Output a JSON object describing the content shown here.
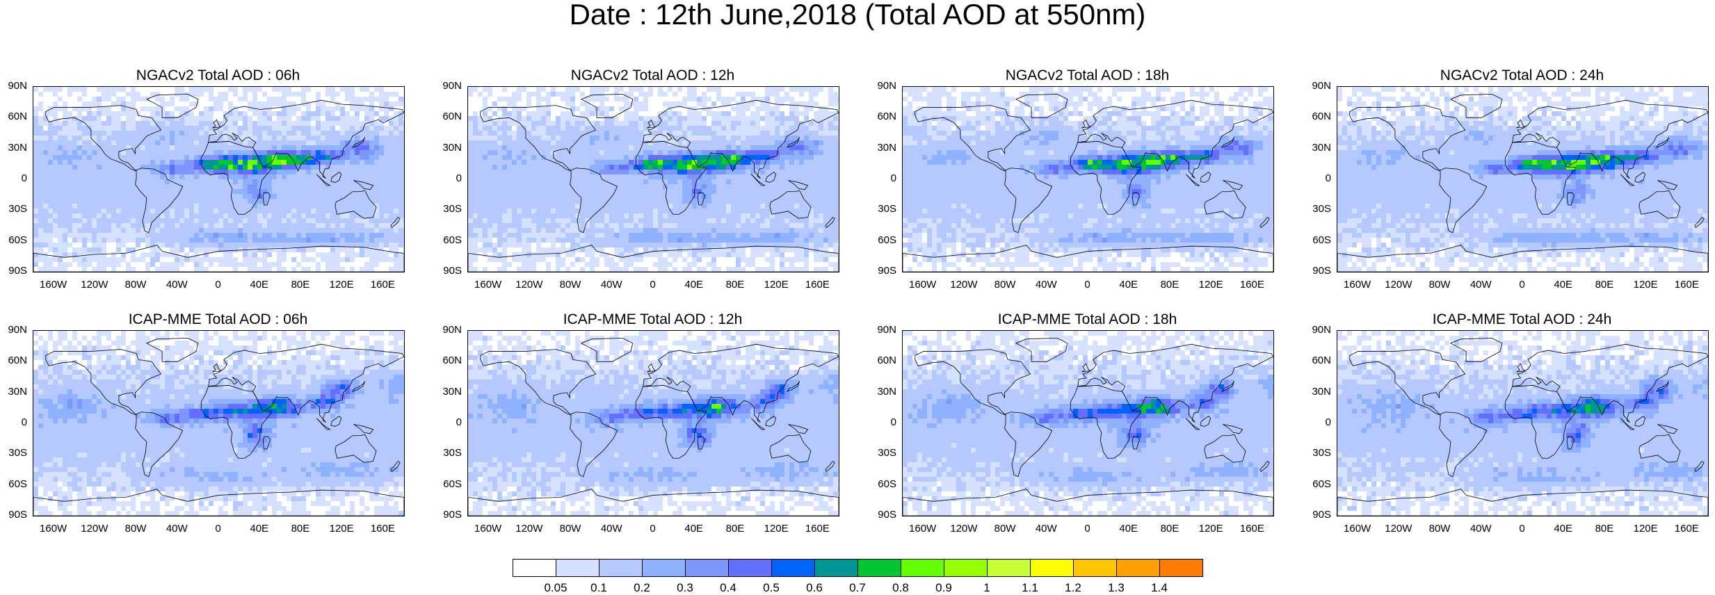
{
  "figure": {
    "title": "Date : 12th June,2018 (Total AOD at 550nm)"
  },
  "axes": {
    "lat_labels": [
      "90N",
      "60N",
      "30N",
      "0",
      "30S",
      "60S",
      "90S"
    ],
    "lon_labels": [
      "160W",
      "120W",
      "80W",
      "40W",
      "0",
      "40E",
      "80E",
      "120E",
      "160E"
    ],
    "lat_values": [
      90,
      60,
      30,
      0,
      -30,
      -60,
      -90
    ],
    "lon_values": [
      -160,
      -120,
      -80,
      -40,
      0,
      40,
      80,
      120,
      160
    ]
  },
  "panels": [
    {
      "title": "NGACv2 Total AOD : 06h",
      "model": "NGACv2",
      "hour": "06h"
    },
    {
      "title": "NGACv2 Total AOD : 12h",
      "model": "NGACv2",
      "hour": "12h"
    },
    {
      "title": "NGACv2 Total AOD : 18h",
      "model": "NGACv2",
      "hour": "18h"
    },
    {
      "title": "NGACv2 Total AOD : 24h",
      "model": "NGACv2",
      "hour": "24h"
    },
    {
      "title": "ICAP-MME Total AOD : 06h",
      "model": "ICAP-MME",
      "hour": "06h"
    },
    {
      "title": "ICAP-MME Total AOD : 12h",
      "model": "ICAP-MME",
      "hour": "12h"
    },
    {
      "title": "ICAP-MME Total AOD : 18h",
      "model": "ICAP-MME",
      "hour": "18h"
    },
    {
      "title": "ICAP-MME Total AOD : 24h",
      "model": "ICAP-MME",
      "hour": "24h"
    }
  ],
  "colorbar": {
    "labels": [
      "0.05",
      "0.1",
      "0.2",
      "0.3",
      "0.4",
      "0.5",
      "0.6",
      "0.7",
      "0.8",
      "0.9",
      "1",
      "1.1",
      "1.2",
      "1.3",
      "1.4"
    ],
    "colors": [
      "#ffffff",
      "#d6e1ff",
      "#b5c9ff",
      "#8eb2ff",
      "#7f96ff",
      "#6370ff",
      "#0063ff",
      "#009696",
      "#00c633",
      "#63ff00",
      "#96ff00",
      "#c6ff33",
      "#ffff00",
      "#ffc600",
      "#ffa000",
      "#ff7c00",
      "#ff1900"
    ]
  },
  "chart_data": {
    "type": "heatmap",
    "title": "Date : 12th June,2018 (Total AOD at 550nm)",
    "variable": "Total AOD at 550nm",
    "date": "12th June,2018",
    "levels": [
      0.05,
      0.1,
      0.2,
      0.3,
      0.4,
      0.5,
      0.6,
      0.7,
      0.8,
      0.9,
      1,
      1.1,
      1.2,
      1.3,
      1.4
    ],
    "x_range": [
      -180,
      180
    ],
    "y_range": [
      -90,
      90
    ]
  }
}
